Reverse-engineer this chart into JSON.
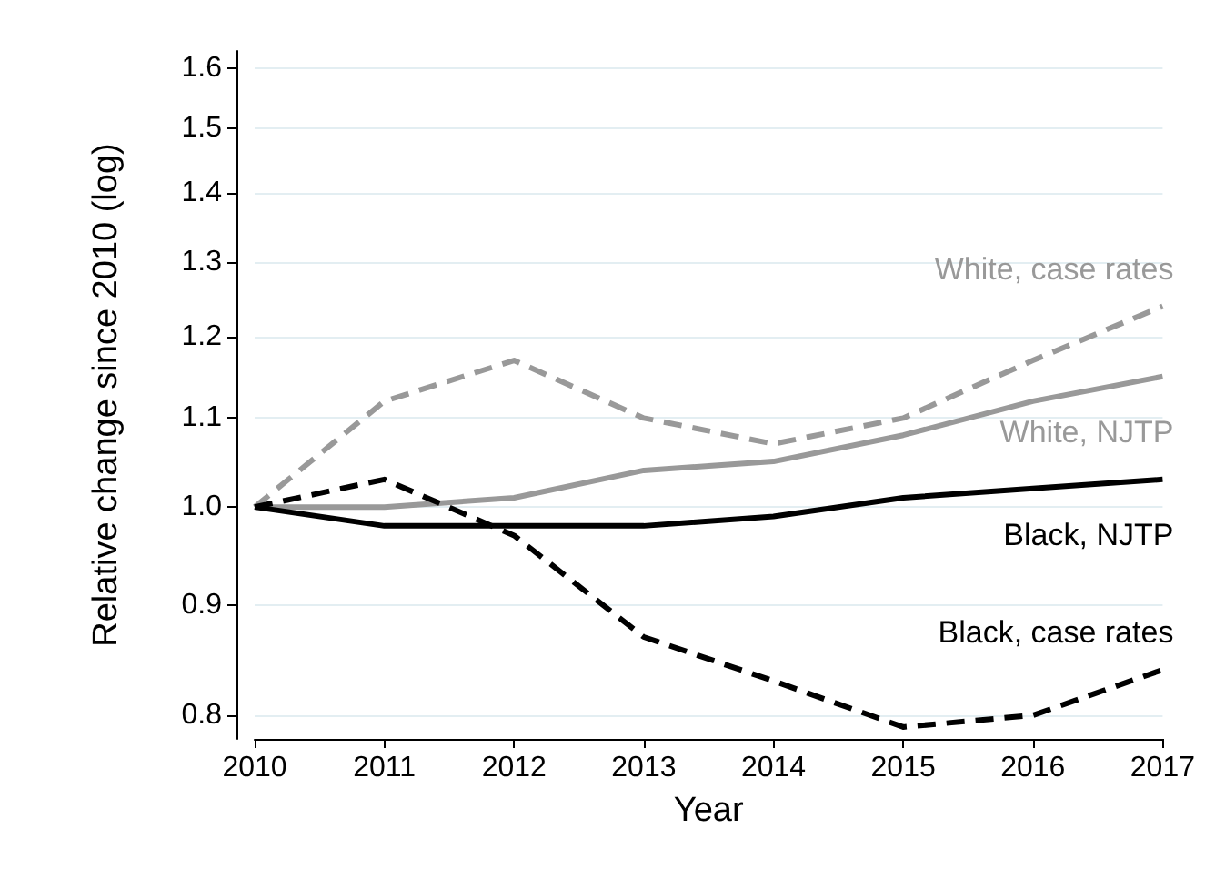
{
  "chart_data": {
    "type": "line",
    "xlabel": "Year",
    "ylabel": "Relative change since 2010 (log)",
    "x": [
      2010,
      2011,
      2012,
      2013,
      2014,
      2015,
      2016,
      2017
    ],
    "series": [
      {
        "name": "White, case rates",
        "color": "#999999",
        "line_style": "dashed",
        "values": [
          1.0,
          1.12,
          1.17,
          1.1,
          1.07,
          1.1,
          1.17,
          1.24
        ]
      },
      {
        "name": "White, NJTP",
        "color": "#999999",
        "line_style": "solid",
        "values": [
          1.0,
          1.0,
          1.01,
          1.04,
          1.05,
          1.08,
          1.12,
          1.15
        ]
      },
      {
        "name": "Black, NJTP",
        "color": "#000000",
        "line_style": "solid",
        "values": [
          1.0,
          0.98,
          0.98,
          0.98,
          0.99,
          1.01,
          1.02,
          1.03
        ]
      },
      {
        "name": "Black, case rates",
        "color": "#000000",
        "line_style": "dashed",
        "values": [
          1.0,
          1.03,
          0.97,
          0.87,
          0.83,
          0.79,
          0.8,
          0.84
        ]
      }
    ],
    "log": true,
    "xlim": [
      2010,
      2017
    ],
    "xticks": [
      2010,
      2011,
      2012,
      2013,
      2014,
      2015,
      2016,
      2017
    ],
    "ylim": [
      0.78,
      1.63
    ],
    "yticks": [
      0.8,
      0.9,
      {
        "value": 1,
        "label": "1.0"
      },
      1.1,
      1.2,
      1.3,
      1.4,
      1.5,
      1.6
    ],
    "grid": "y",
    "legend": false,
    "marker": "none"
  }
}
